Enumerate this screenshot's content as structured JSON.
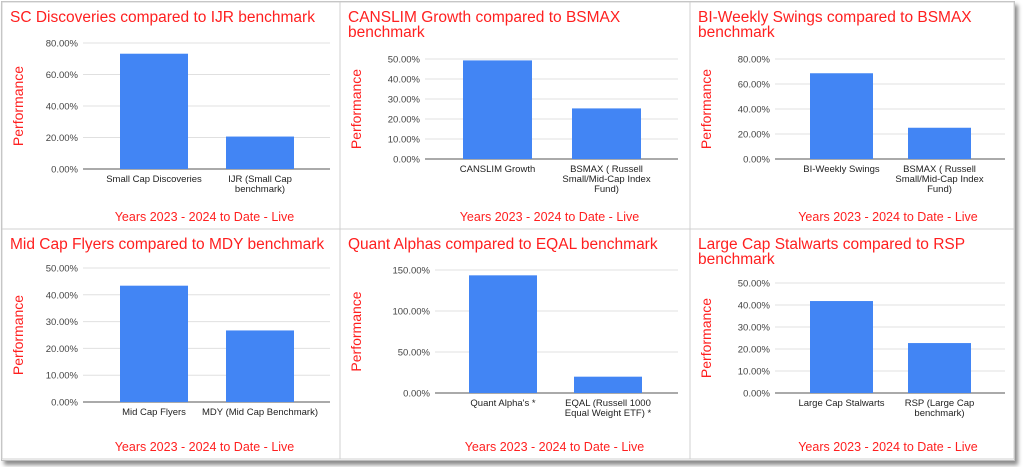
{
  "chart_data": [
    {
      "type": "bar",
      "title_lines": [
        "SC Discoveries compared to IJR benchmark"
      ],
      "ylabel": "Performance",
      "xlabel": "Years 2023 - 2024 to Date - Live",
      "categories": [
        [
          "Small Cap Discoveries"
        ],
        [
          "IJR (Small Cap",
          "benchmark)"
        ]
      ],
      "values": [
        73.2,
        20.6
      ],
      "ylim": [
        0,
        80
      ],
      "yticks": [
        "0.00%",
        "20.00%",
        "40.00%",
        "60.00%",
        "80.00%"
      ],
      "grid": true,
      "bar_color": "#4285f4"
    },
    {
      "type": "bar",
      "title_lines": [
        "CANSLIM Growth compared to BSMAX",
        "benchmark"
      ],
      "ylabel": "Performance",
      "xlabel": "Years 2023 - 2024 to Date - Live",
      "categories": [
        [
          "CANSLIM Growth"
        ],
        [
          "BSMAX ( Russell",
          "Small/Mid-Cap Index",
          "Fund)"
        ]
      ],
      "values": [
        49.3,
        25.3
      ],
      "ylim": [
        0,
        50
      ],
      "yticks": [
        "0.00%",
        "10.00%",
        "20.00%",
        "30.00%",
        "40.00%",
        "50.00%"
      ],
      "grid": true,
      "bar_color": "#4285f4"
    },
    {
      "type": "bar",
      "title_lines": [
        "BI-Weekly Swings compared to BSMAX",
        "benchmark"
      ],
      "ylabel": "Performance",
      "xlabel": "Years 2023 - 2024 to Date - Live",
      "categories": [
        [
          "BI-Weekly Swings"
        ],
        [
          "BSMAX ( Russell",
          "Small/Mid-Cap Index",
          "Fund)"
        ]
      ],
      "values": [
        68.6,
        25.0
      ],
      "ylim": [
        0,
        80
      ],
      "yticks": [
        "0.00%",
        "20.00%",
        "40.00%",
        "60.00%",
        "80.00%"
      ],
      "grid": true,
      "bar_color": "#4285f4"
    },
    {
      "type": "bar",
      "title_lines": [
        "Mid Cap Flyers compared to MDY benchmark"
      ],
      "ylabel": "Performance",
      "xlabel": "Years 2023 - 2024 to Date - Live",
      "categories": [
        [
          "Mid Cap Flyers"
        ],
        [
          "MDY (Mid Cap Benchmark)"
        ]
      ],
      "values": [
        43.4,
        26.7
      ],
      "ylim": [
        0,
        50
      ],
      "yticks": [
        "0.00%",
        "10.00%",
        "20.00%",
        "30.00%",
        "40.00%",
        "50.00%"
      ],
      "grid": true,
      "bar_color": "#4285f4"
    },
    {
      "type": "bar",
      "title_lines": [
        "Quant Alphas compared to EQAL benchmark"
      ],
      "ylabel": "Performance",
      "xlabel": "Years 2023 - 2024 to Date - Live",
      "categories": [
        [
          "Quant Alpha's   *"
        ],
        [
          "EQAL (Russell 1000",
          "Equal Weight ETF)  *"
        ]
      ],
      "values": [
        143.5,
        19.9
      ],
      "ylim": [
        0,
        150
      ],
      "yticks": [
        "0.00%",
        "50.00%",
        "100.00%",
        "150.00%"
      ],
      "grid": true,
      "bar_color": "#4285f4"
    },
    {
      "type": "bar",
      "title_lines": [
        "Large Cap Stalwarts compared to RSP",
        "benchmark"
      ],
      "ylabel": "Performance",
      "xlabel": "Years 2023 - 2024 to Date - Live",
      "categories": [
        [
          "Large Cap Stalwarts"
        ],
        [
          "RSP (Large Cap",
          "benchmark)"
        ]
      ],
      "values": [
        41.8,
        22.7
      ],
      "ylim": [
        0,
        50
      ],
      "yticks": [
        "0.00%",
        "10.00%",
        "20.00%",
        "30.00%",
        "40.00%",
        "50.00%"
      ],
      "grid": true,
      "bar_color": "#4285f4"
    }
  ]
}
